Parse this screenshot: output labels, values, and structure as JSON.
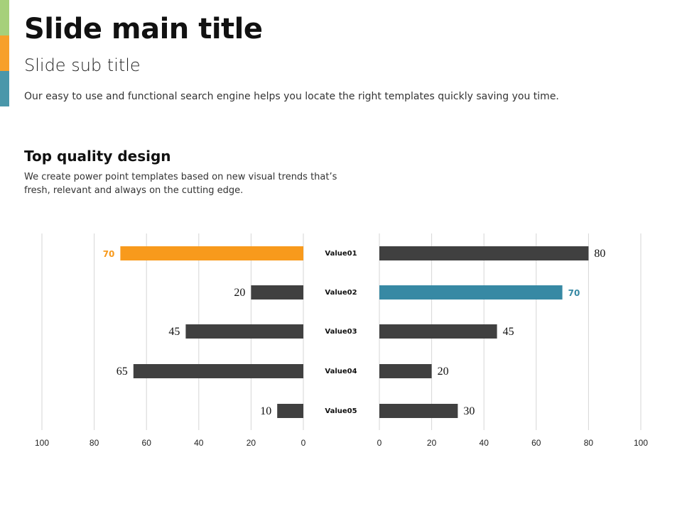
{
  "slide": {
    "title": "Slide main title",
    "subtitle": "Slide sub title",
    "intro": "Our easy to use and functional search engine  helps you locate the right templates quickly saving you time.",
    "section_title": "Top quality design",
    "section_body": "We create power point templates based on new visual trends that’s fresh, relevant and always on the cutting edge."
  },
  "colors": {
    "accent_green": "#a6d07a",
    "accent_orange": "#f7a02a",
    "accent_teal": "#4a97aa",
    "bar_dark": "#404040",
    "highlight_orange": "#f89a1c",
    "highlight_teal": "#3789a4",
    "grid": "#d6d6d6"
  },
  "chart_data": [
    {
      "type": "bar",
      "orientation": "horizontal",
      "direction": "right-to-left",
      "categories": [
        "Value01",
        "Value02",
        "Value03",
        "Value04",
        "Value05"
      ],
      "values": [
        70,
        20,
        45,
        65,
        10
      ],
      "highlight_index": 0,
      "xlim": [
        0,
        100
      ],
      "ticks": [
        100,
        80,
        60,
        40,
        20,
        0
      ],
      "grid": true
    },
    {
      "type": "bar",
      "orientation": "horizontal",
      "direction": "left-to-right",
      "categories": [
        "Value01",
        "Value02",
        "Value03",
        "Value04",
        "Value05"
      ],
      "values": [
        80,
        70,
        45,
        20,
        30
      ],
      "highlight_index": 1,
      "xlim": [
        0,
        100
      ],
      "ticks": [
        0,
        20,
        40,
        60,
        80,
        100
      ],
      "grid": true
    }
  ]
}
